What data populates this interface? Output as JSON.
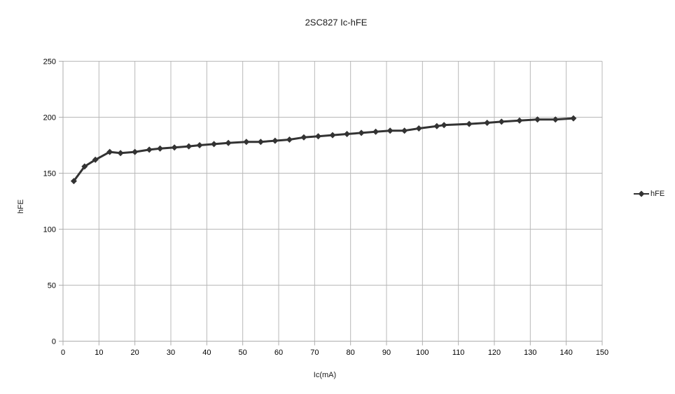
{
  "title": "2SC827 Ic-hFE",
  "legend": {
    "label": "hFE"
  },
  "chart_data": {
    "type": "line",
    "title": "2SC827 Ic-hFE",
    "xlabel": "Ic(mA)",
    "ylabel": "hFE",
    "xlim": [
      0,
      150
    ],
    "ylim": [
      0,
      250
    ],
    "x_ticks": [
      0,
      10,
      20,
      30,
      40,
      50,
      60,
      70,
      80,
      90,
      100,
      110,
      120,
      130,
      140,
      150
    ],
    "y_ticks": [
      0,
      50,
      100,
      150,
      200,
      250
    ],
    "grid": true,
    "legend_position": "right",
    "marker": "diamond",
    "x": [
      3,
      6,
      9,
      13,
      16,
      20,
      24,
      27,
      31,
      35,
      38,
      42,
      46,
      51,
      55,
      59,
      63,
      67,
      71,
      75,
      79,
      83,
      87,
      91,
      95,
      99,
      104,
      106,
      113,
      118,
      122,
      127,
      132,
      137,
      142
    ],
    "series": [
      {
        "name": "hFE",
        "values": [
          143,
          156,
          162,
          169,
          168,
          169,
          171,
          172,
          173,
          174,
          175,
          176,
          177,
          178,
          178,
          179,
          180,
          182,
          183,
          184,
          185,
          186,
          187,
          188,
          188,
          190,
          192,
          193,
          194,
          195,
          196,
          197,
          198,
          198,
          199
        ]
      }
    ],
    "colors": {
      "series": "#333333",
      "grid": "#b8b8b8",
      "axis": "#adadad",
      "text": "#000000",
      "background": "#ffffff"
    }
  }
}
